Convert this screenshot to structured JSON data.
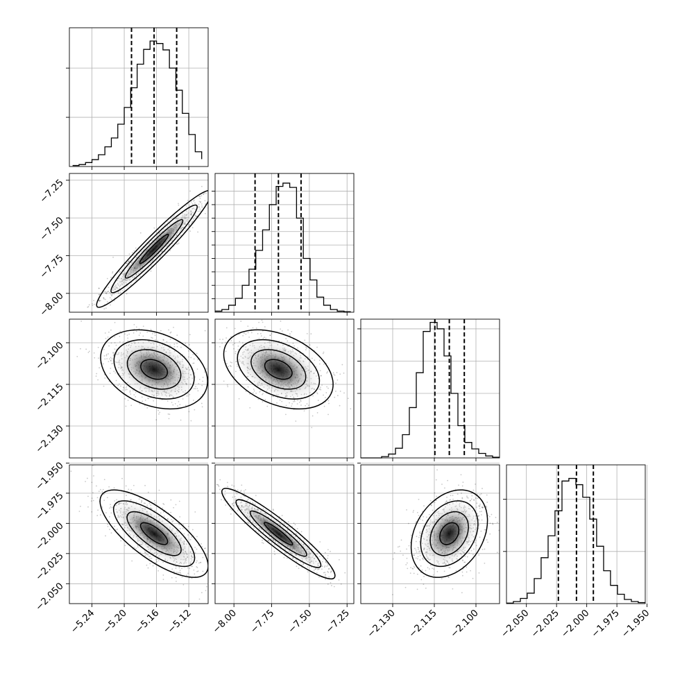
{
  "figure_type": "corner-plot",
  "chart_data": {
    "type": "corner",
    "parameters": [
      {
        "ticks": [
          -5.24,
          -5.2,
          -5.16,
          -5.12
        ],
        "tick_labels": [
          "−5.24",
          "−5.20",
          "−5.16",
          "−5.12"
        ],
        "range": [
          -5.268,
          -5.096
        ],
        "quantiles": [
          -5.191,
          -5.163,
          -5.135
        ],
        "hist_bins": [
          -5.264,
          -5.256,
          -5.248,
          -5.24,
          -5.232,
          -5.224,
          -5.216,
          -5.208,
          -5.2,
          -5.192,
          -5.184,
          -5.176,
          -5.168,
          -5.16,
          -5.152,
          -5.144,
          -5.136,
          -5.128,
          -5.12,
          -5.112,
          -5.104
        ],
        "hist_counts": [
          2,
          4,
          8,
          14,
          24,
          40,
          58,
          86,
          120,
          160,
          208,
          238,
          255,
          250,
          237,
          200,
          155,
          108,
          65,
          30,
          15
        ],
        "hist_ymax": 282,
        "hist_yticks": [
          100,
          200
        ]
      },
      {
        "ticks": [
          -8.0,
          -7.75,
          -7.5,
          -7.25
        ],
        "tick_labels": [
          "−8.00",
          "−7.75",
          "−7.50",
          "−7.25"
        ],
        "range": [
          -8.125,
          -7.205
        ],
        "quantiles": [
          -7.86,
          -7.705,
          -7.555
        ],
        "hist_bins": [
          -8.125,
          -8.08,
          -8.035,
          -7.99,
          -7.945,
          -7.9,
          -7.855,
          -7.81,
          -7.765,
          -7.72,
          -7.675,
          -7.63,
          -7.585,
          -7.54,
          -7.495,
          -7.45,
          -7.405,
          -7.36,
          -7.315,
          -7.27,
          -7.225
        ],
        "hist_counts": [
          2,
          5,
          13,
          26,
          50,
          80,
          115,
          153,
          200,
          234,
          240,
          232,
          175,
          100,
          60,
          28,
          13,
          5,
          2,
          1
        ],
        "hist_ymax": 258,
        "hist_yticks": [
          25,
          50,
          75,
          100,
          125,
          150,
          175,
          200,
          225
        ]
      },
      {
        "ticks": [
          -2.13,
          -2.115,
          -2.1
        ],
        "tick_labels": [
          "−2.130",
          "−2.115",
          "−2.100"
        ],
        "range": [
          -2.1415,
          -2.0915
        ],
        "quantiles": [
          -2.1148,
          -2.1096,
          -2.1042
        ],
        "hist_bins": [
          -2.1415,
          -2.139,
          -2.1365,
          -2.134,
          -2.1315,
          -2.129,
          -2.1265,
          -2.124,
          -2.1215,
          -2.119,
          -2.1165,
          -2.114,
          -2.1115,
          -2.109,
          -2.1065,
          -2.104,
          -2.1015,
          -2.099,
          -2.0965,
          -2.094,
          -2.0915
        ],
        "hist_counts": [
          0,
          0,
          0,
          2,
          6,
          15,
          36,
          78,
          132,
          196,
          210,
          200,
          158,
          100,
          50,
          24,
          14,
          7,
          3,
          1
        ],
        "hist_ymax": 215,
        "hist_yticks": [
          50,
          100,
          150,
          200
        ]
      },
      {
        "ticks": [
          -2.05,
          -2.025,
          -2.0,
          -1.975,
          -1.95
        ],
        "tick_labels": [
          "−2.050",
          "−2.025",
          "−2.000",
          "−1.975",
          "−1.950"
        ],
        "range": [
          -2.0665,
          -1.9515
        ],
        "quantiles": [
          -2.0235,
          -2.0085,
          -1.9945
        ],
        "hist_bins": [
          -2.0665,
          -2.0608,
          -2.055,
          -2.0493,
          -2.0435,
          -2.0378,
          -2.032,
          -2.0263,
          -2.0205,
          -2.0148,
          -2.009,
          -2.0033,
          -1.9975,
          -1.9918,
          -1.986,
          -1.9803,
          -1.9745,
          -1.9688,
          -1.963,
          -1.9573,
          -1.9515
        ],
        "hist_counts": [
          1,
          4,
          10,
          20,
          48,
          88,
          130,
          178,
          235,
          240,
          228,
          204,
          162,
          110,
          63,
          35,
          18,
          8,
          4,
          2
        ],
        "hist_ymax": 266,
        "hist_yticks": [
          100,
          200
        ]
      }
    ],
    "pairs": [
      {
        "x": 0,
        "y": 1,
        "mean": [
          -5.163,
          -7.705
        ],
        "sd": [
          0.0285,
          0.155
        ],
        "rho": 0.96
      },
      {
        "x": 0,
        "y": 2,
        "mean": [
          -5.163,
          -2.1096
        ],
        "sd": [
          0.0265,
          0.0057
        ],
        "rho": -0.3
      },
      {
        "x": 1,
        "y": 2,
        "mean": [
          -7.705,
          -2.1096
        ],
        "sd": [
          0.145,
          0.0057
        ],
        "rho": -0.38
      },
      {
        "x": 0,
        "y": 3,
        "mean": [
          -5.163,
          -2.0085
        ],
        "sd": [
          0.0268,
          0.0145
        ],
        "rho": -0.74
      },
      {
        "x": 1,
        "y": 3,
        "mean": [
          -7.705,
          -2.0085
        ],
        "sd": [
          0.15,
          0.015
        ],
        "rho": -0.93
      },
      {
        "x": 2,
        "y": 3,
        "mean": [
          -2.1096,
          -2.0085
        ],
        "sd": [
          0.0055,
          0.0145
        ],
        "rho": 0.3
      }
    ],
    "contour_levels_sigma": [
      0.5,
      1.0,
      1.5,
      2.0
    ],
    "xlabel": "",
    "ylabel": "",
    "title": "",
    "grid": true
  }
}
